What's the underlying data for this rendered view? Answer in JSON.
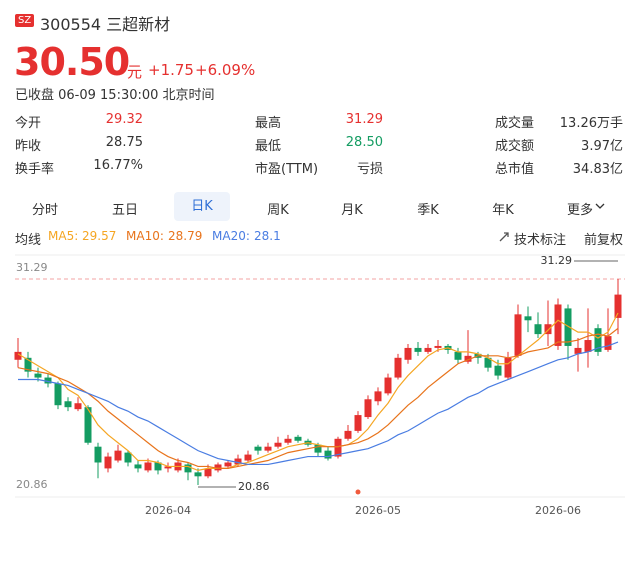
{
  "header": {
    "market": "SZ",
    "code_name": "300554 三超新材",
    "price": "30.50",
    "unit": "元",
    "change": "+1.75",
    "change_pct": "+6.09%",
    "status": "已收盘 06-09 15:30:00 北京时间"
  },
  "stats": [
    [
      {
        "label": "今开",
        "value": "29.32",
        "color": "#e5302f"
      },
      {
        "label": "最高",
        "value": "31.29",
        "color": "#e5302f"
      },
      {
        "label": "成交量",
        "value": "13.26万手",
        "color": "#333333"
      }
    ],
    [
      {
        "label": "昨收",
        "value": "28.75",
        "color": "#333333"
      },
      {
        "label": "最低",
        "value": "28.50",
        "color": "#149c62"
      },
      {
        "label": "成交额",
        "value": "3.97亿",
        "color": "#333333"
      }
    ],
    [
      {
        "label": "换手率",
        "value": "16.77%",
        "color": "#333333"
      },
      {
        "label": "市盈(TTM)",
        "value": "亏损",
        "color": "#333333"
      },
      {
        "label": "总市值",
        "value": "34.83亿",
        "color": "#333333"
      }
    ]
  ],
  "tabs": [
    "分时",
    "五日",
    "日K",
    "周K",
    "月K",
    "季K",
    "年K",
    "更多"
  ],
  "active_tab": 2,
  "indicator": "均线",
  "tools": [
    "技术标注",
    "前复权"
  ],
  "chart_data": {
    "type": "candlestick",
    "up_color": "#e5302f",
    "down_color": "#149c62",
    "categories": [
      null,
      null,
      null,
      null,
      null,
      null,
      null,
      null,
      null,
      null,
      null,
      null,
      null,
      null,
      null,
      "2026-04",
      null,
      null,
      null,
      null,
      null,
      null,
      null,
      null,
      null,
      null,
      null,
      null,
      null,
      null,
      null,
      null,
      null,
      null,
      null,
      null,
      "2026-05",
      null,
      null,
      null,
      null,
      null,
      null,
      null,
      null,
      null,
      null,
      null,
      null,
      null,
      null,
      null,
      null,
      null,
      "2026-06",
      null,
      null,
      null,
      null,
      null,
      null
    ],
    "open": [
      27.2,
      27.3,
      26.5,
      26.3,
      26.0,
      25.1,
      24.7,
      24.8,
      22.8,
      21.7,
      22.1,
      22.5,
      21.9,
      21.6,
      22.0,
      21.7,
      21.6,
      21.9,
      21.5,
      21.3,
      21.6,
      21.8,
      21.9,
      22.1,
      22.8,
      22.6,
      22.8,
      23.0,
      23.3,
      23.1,
      22.9,
      22.6,
      22.3,
      23.2,
      23.6,
      24.3,
      25.1,
      25.5,
      26.3,
      27.2,
      27.8,
      27.6,
      27.8,
      27.9,
      27.6,
      27.1,
      27.5,
      27.3,
      26.9,
      26.3,
      27.4,
      29.4,
      29.0,
      28.5,
      27.9,
      29.8,
      27.5,
      27.6,
      28.8,
      27.7,
      29.32
    ],
    "high": [
      28.3,
      27.6,
      26.8,
      26.5,
      26.1,
      25.3,
      25.3,
      24.9,
      23.0,
      22.5,
      22.9,
      22.6,
      22.1,
      22.2,
      22.1,
      22.0,
      22.2,
      22.0,
      21.7,
      21.9,
      22.0,
      22.1,
      22.4,
      22.6,
      22.9,
      23.0,
      23.3,
      23.4,
      23.4,
      23.2,
      23.0,
      22.8,
      23.3,
      23.9,
      24.6,
      25.4,
      25.8,
      26.5,
      27.5,
      28.0,
      28.1,
      28.0,
      28.2,
      28.0,
      27.8,
      28.7,
      27.6,
      27.5,
      27.2,
      27.6,
      30.0,
      29.9,
      29.6,
      30.2,
      30.3,
      30.0,
      28.3,
      29.8,
      29.0,
      29.8,
      31.29
    ],
    "low": [
      26.8,
      26.3,
      26.1,
      25.8,
      24.7,
      24.6,
      24.6,
      22.9,
      21.2,
      21.5,
      22.0,
      21.8,
      21.5,
      21.5,
      21.4,
      21.5,
      21.5,
      21.1,
      20.86,
      21.2,
      21.5,
      21.7,
      21.8,
      22.0,
      22.4,
      22.5,
      22.7,
      22.9,
      23.0,
      22.8,
      22.3,
      22.1,
      22.2,
      23.1,
      23.5,
      24.2,
      24.9,
      25.4,
      26.2,
      27.0,
      27.4,
      27.5,
      27.6,
      27.5,
      27.0,
      27.0,
      27.0,
      26.6,
      26.2,
      26.2,
      27.3,
      28.6,
      28.3,
      27.9,
      27.7,
      27.2,
      26.6,
      26.8,
      27.4,
      27.6,
      28.5
    ],
    "close": [
      27.6,
      26.6,
      26.3,
      26.0,
      24.9,
      24.8,
      25.0,
      23.0,
      22.0,
      22.3,
      22.6,
      22.0,
      21.7,
      22.0,
      21.6,
      21.8,
      22.0,
      21.5,
      21.3,
      21.7,
      21.9,
      22.0,
      22.2,
      22.4,
      22.6,
      22.8,
      23.0,
      23.2,
      23.1,
      22.9,
      22.5,
      22.2,
      23.2,
      23.6,
      24.4,
      25.2,
      25.6,
      26.3,
      27.3,
      27.8,
      27.6,
      27.8,
      27.9,
      27.7,
      27.2,
      27.4,
      27.3,
      26.8,
      26.4,
      27.3,
      29.5,
      29.2,
      28.5,
      29.0,
      30.0,
      27.9,
      27.8,
      28.2,
      27.6,
      28.4,
      30.5
    ],
    "series": [
      {
        "name": "MA5:",
        "color": "#f5a623",
        "values": [
          27.5,
          27.2,
          26.9,
          26.6,
          26.3,
          25.7,
          25.4,
          24.7,
          23.9,
          23.4,
          23.0,
          22.6,
          22.1,
          22.1,
          22.0,
          21.8,
          21.8,
          21.8,
          21.6,
          21.7,
          21.7,
          21.7,
          21.9,
          22.0,
          22.2,
          22.4,
          22.6,
          22.8,
          22.9,
          23.0,
          22.9,
          22.8,
          22.8,
          22.9,
          23.2,
          23.7,
          24.4,
          25.0,
          25.8,
          26.4,
          26.9,
          27.4,
          27.7,
          27.8,
          27.6,
          27.6,
          27.5,
          27.3,
          27.0,
          27.0,
          27.4,
          27.8,
          28.2,
          28.7,
          29.2,
          28.9,
          28.6,
          28.6,
          28.3,
          28.6,
          29.57
        ]
      },
      {
        "name": "MA10:",
        "color": "#e8741c",
        "values": [
          26.8,
          26.7,
          26.6,
          26.5,
          26.3,
          26.1,
          25.8,
          25.5,
          25.1,
          24.6,
          24.2,
          23.8,
          23.4,
          23.0,
          22.6,
          22.3,
          22.1,
          22.0,
          21.8,
          21.8,
          21.7,
          21.7,
          21.8,
          21.9,
          22.0,
          22.1,
          22.3,
          22.5,
          22.6,
          22.7,
          22.8,
          22.8,
          22.8,
          22.9,
          23.0,
          23.2,
          23.5,
          23.9,
          24.4,
          24.9,
          25.3,
          25.8,
          26.2,
          26.6,
          27.0,
          27.2,
          27.4,
          27.4,
          27.4,
          27.3,
          27.4,
          27.6,
          27.7,
          27.8,
          28.1,
          28.1,
          28.2,
          28.4,
          28.5,
          28.4,
          28.79
        ]
      },
      {
        "name": "MA20:",
        "color": "#4a7de2",
        "values": [
          26.2,
          26.2,
          26.2,
          26.1,
          26.0,
          25.9,
          25.7,
          25.5,
          25.3,
          25.1,
          24.8,
          24.6,
          24.3,
          24.1,
          23.8,
          23.5,
          23.2,
          22.9,
          22.6,
          22.4,
          22.2,
          22.1,
          22.0,
          21.9,
          21.9,
          21.9,
          22.0,
          22.1,
          22.2,
          22.3,
          22.3,
          22.3,
          22.4,
          22.5,
          22.6,
          22.7,
          22.9,
          23.1,
          23.4,
          23.6,
          23.9,
          24.2,
          24.5,
          24.7,
          25.0,
          25.3,
          25.5,
          25.8,
          26.0,
          26.2,
          26.4,
          26.6,
          26.8,
          27.0,
          27.2,
          27.3,
          27.5,
          27.6,
          27.8,
          27.9,
          28.1
        ]
      }
    ],
    "ylim": [
      20.86,
      31.29
    ],
    "yticks": [
      20.86,
      31.29
    ]
  }
}
